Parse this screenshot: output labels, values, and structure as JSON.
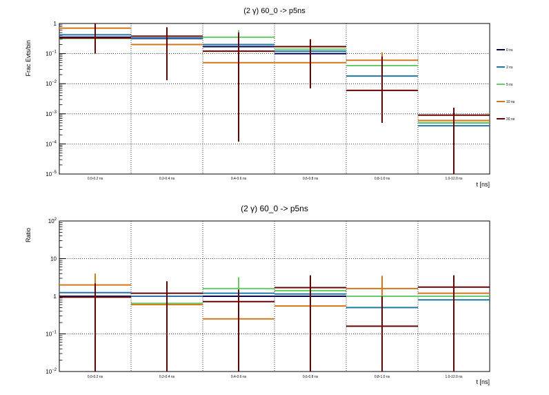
{
  "chart_data": [
    {
      "type": "line",
      "title": "(2 γ) 60_0 -> p5ns",
      "xlabel": "t [ns]",
      "ylabel": "Frac Evts/bin",
      "yscale": "log",
      "ylim": [
        1e-05,
        1
      ],
      "yticks": [
        {
          "value": 1,
          "base": "1",
          "exp": ""
        },
        {
          "value": 0.1,
          "base": "10",
          "exp": "−1"
        },
        {
          "value": 0.01,
          "base": "10",
          "exp": "−2"
        },
        {
          "value": 0.001,
          "base": "10",
          "exp": "−3"
        },
        {
          "value": 0.0001,
          "base": "10",
          "exp": "−4"
        },
        {
          "value": 1e-05,
          "base": "10",
          "exp": "−5"
        }
      ],
      "grid": true,
      "legend_position": "right",
      "categories": [
        "0.0-0.2 ns",
        "0.2-0.4 ns",
        "0.4-0.6 ns",
        "0.6-0.8 ns",
        "0.8-1.0 ns",
        "1.0-12.0 ns"
      ],
      "series": [
        {
          "name": "0 ns",
          "color": "#000055",
          "values": [
            0.35,
            0.32,
            0.17,
            0.1,
            0.04,
            0.0005
          ]
        },
        {
          "name": "2 ns",
          "color": "#1f77a8",
          "values": [
            0.42,
            0.33,
            0.2,
            0.12,
            0.018,
            0.0004
          ]
        },
        {
          "name": "5 ns",
          "color": "#66cc66",
          "values": [
            0.32,
            0.2,
            0.35,
            0.14,
            0.04,
            0.0005
          ]
        },
        {
          "name": "10 ns",
          "color": "#d2761a",
          "values": [
            0.7,
            0.2,
            0.05,
            0.05,
            0.06,
            0.0006
          ]
        },
        {
          "name": "20 ns",
          "color": "#6b0000",
          "values": [
            0.33,
            0.38,
            0.12,
            0.17,
            0.006,
            0.0009
          ],
          "err_lo": [
            0.1,
            0.013,
            0.00012,
            0.007,
            0.0005,
            1e-05
          ],
          "err_hi": [
            1,
            0.75,
            0.5,
            0.3,
            0.08,
            0.0016
          ]
        }
      ],
      "extra_errors": [
        {
          "color": "#d2761a",
          "category": 0,
          "lo": 0.6,
          "hi": 1
        },
        {
          "color": "#66cc66",
          "category": 2,
          "lo": 0.2,
          "hi": 0.6
        },
        {
          "color": "#d2761a",
          "category": 4,
          "lo": 0.02,
          "hi": 0.11
        }
      ]
    },
    {
      "type": "line",
      "title": "(2 γ) 60_0 -> p5ns",
      "xlabel": "t [ns]",
      "ylabel": "Ratio",
      "yscale": "log",
      "ylim": [
        0.01,
        100
      ],
      "yticks": [
        {
          "value": 100,
          "base": "10",
          "exp": "2"
        },
        {
          "value": 10,
          "base": "10",
          "exp": ""
        },
        {
          "value": 1,
          "base": "1",
          "exp": ""
        },
        {
          "value": 0.1,
          "base": "10",
          "exp": "−1"
        },
        {
          "value": 0.01,
          "base": "10",
          "exp": "−2"
        }
      ],
      "grid": true,
      "categories": [
        "0.0-0.2 ns",
        "0.2-0.4 ns",
        "0.4-0.6 ns",
        "0.6-0.8 ns",
        "0.8-1.0 ns",
        "1.0-12.0 ns"
      ],
      "series": [
        {
          "name": "0 ns",
          "color": "#000055",
          "values": [
            1,
            1,
            1,
            1,
            1,
            1
          ]
        },
        {
          "name": "2 ns",
          "color": "#1f77a8",
          "values": [
            1.25,
            1.0,
            1.2,
            1.15,
            0.5,
            0.8
          ]
        },
        {
          "name": "5 ns",
          "color": "#66cc66",
          "values": [
            0.95,
            0.65,
            1.6,
            1.4,
            1.0,
            1.0
          ]
        },
        {
          "name": "10 ns",
          "color": "#d2761a",
          "values": [
            2.0,
            0.6,
            0.25,
            0.55,
            1.6,
            1.2
          ]
        },
        {
          "name": "20 ns",
          "color": "#6b0000",
          "values": [
            0.95,
            1.2,
            0.72,
            1.7,
            0.16,
            1.75
          ],
          "err_lo": [
            0.01,
            0.01,
            0.01,
            0.01,
            0.01,
            0.01
          ],
          "err_hi": [
            2.2,
            2.5,
            1.5,
            3.6,
            1.0,
            3.6
          ]
        }
      ],
      "extra_errors": [
        {
          "color": "#d2761a",
          "category": 0,
          "lo": 1.0,
          "hi": 4.0
        },
        {
          "color": "#66cc66",
          "category": 2,
          "lo": 1.0,
          "hi": 3.2
        },
        {
          "color": "#d2761a",
          "category": 4,
          "lo": 0.35,
          "hi": 3.5
        }
      ]
    }
  ]
}
